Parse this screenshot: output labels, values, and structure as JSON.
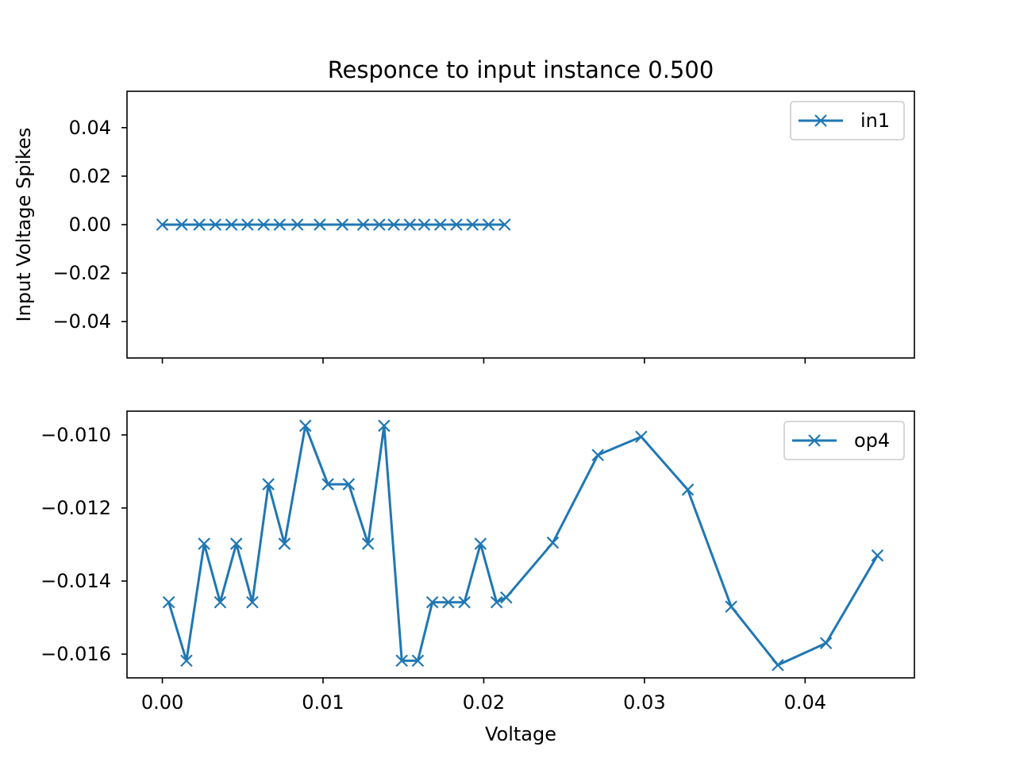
{
  "chart_data": [
    {
      "type": "line",
      "title": "Responce to input instance 0.500",
      "xlabel": "",
      "ylabel": "Input Voltage Spikes",
      "xlim": [
        -0.0022,
        0.0468
      ],
      "ylim": [
        -0.055,
        0.055
      ],
      "xticks": [
        0.0,
        0.01,
        0.02,
        0.03,
        0.04
      ],
      "xtick_labels": [],
      "yticks": [
        0.04,
        0.02,
        0.0,
        -0.02,
        -0.04
      ],
      "ytick_labels": [
        "0.04",
        "0.02",
        "0.00",
        "−0.02",
        "−0.04"
      ],
      "legend": {
        "position": "top-right",
        "entries": [
          "in1"
        ]
      },
      "grid": false,
      "series": [
        {
          "name": "in1",
          "marker": "x",
          "color": "#1f77b4",
          "x": [
            0.0,
            0.0012,
            0.0023,
            0.0033,
            0.0043,
            0.0053,
            0.0063,
            0.0073,
            0.0084,
            0.0098,
            0.0112,
            0.0125,
            0.0135,
            0.0144,
            0.0154,
            0.0163,
            0.0173,
            0.0183,
            0.0193,
            0.0203,
            0.0213
          ],
          "y": [
            0,
            0,
            0,
            0,
            0,
            0,
            0,
            0,
            0,
            0,
            0,
            0,
            0,
            0,
            0,
            0,
            0,
            0,
            0,
            0,
            0
          ]
        }
      ]
    },
    {
      "type": "line",
      "title": "",
      "xlabel": "Voltage",
      "ylabel": "",
      "xlim": [
        -0.0022,
        0.0468
      ],
      "ylim": [
        -0.01665,
        -0.00935
      ],
      "xticks": [
        0.0,
        0.01,
        0.02,
        0.03,
        0.04
      ],
      "xtick_labels": [
        "0.00",
        "0.01",
        "0.02",
        "0.03",
        "0.04"
      ],
      "yticks": [
        -0.01,
        -0.012,
        -0.014,
        -0.016
      ],
      "ytick_labels": [
        "−0.010",
        "−0.012",
        "−0.014",
        "−0.016"
      ],
      "legend": {
        "position": "top-right",
        "entries": [
          "op4"
        ]
      },
      "grid": false,
      "series": [
        {
          "name": "op4",
          "marker": "x",
          "color": "#1f77b4",
          "x": [
            0.0004,
            0.0015,
            0.0026,
            0.0036,
            0.0046,
            0.0056,
            0.0066,
            0.0076,
            0.0089,
            0.0103,
            0.0116,
            0.0128,
            0.0138,
            0.0149,
            0.0159,
            0.0168,
            0.0178,
            0.0188,
            0.0198,
            0.0208,
            0.0214,
            0.0243,
            0.0271,
            0.0298,
            0.0327,
            0.0354,
            0.0383,
            0.0413,
            0.0445
          ],
          "y": [
            -0.01458,
            -0.01618,
            -0.01298,
            -0.01458,
            -0.01298,
            -0.01458,
            -0.01135,
            -0.01298,
            -0.00975,
            -0.01135,
            -0.01135,
            -0.01298,
            -0.00975,
            -0.01618,
            -0.01618,
            -0.01458,
            -0.01458,
            -0.01458,
            -0.01298,
            -0.01458,
            -0.01445,
            -0.01295,
            -0.01055,
            -0.01005,
            -0.0115,
            -0.0147,
            -0.0163,
            -0.0157,
            -0.0133
          ]
        }
      ]
    }
  ]
}
